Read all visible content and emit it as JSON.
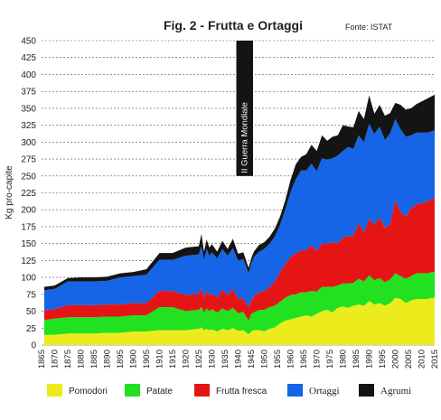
{
  "chart_data": {
    "type": "area",
    "stacked": true,
    "title": "Fig. 2 - Frutta e Ortaggi",
    "source": "Fonte: ISTAT",
    "ylabel": "Kg pro-capite",
    "xlabel": "",
    "ylim": [
      0,
      450
    ],
    "y_ticks": [
      0,
      25,
      50,
      75,
      100,
      125,
      150,
      175,
      200,
      225,
      250,
      275,
      300,
      325,
      350,
      375,
      400,
      425,
      450
    ],
    "x_ticks": [
      1865,
      1870,
      1875,
      1880,
      1885,
      1890,
      1895,
      1900,
      1905,
      1910,
      1915,
      1920,
      1925,
      1930,
      1935,
      1940,
      1945,
      1950,
      1955,
      1960,
      1965,
      1970,
      1975,
      1980,
      1985,
      1990,
      1995,
      2000,
      2005,
      2010,
      2015
    ],
    "xlim": [
      1865,
      2015
    ],
    "grid": "horizontal-dashed",
    "legend_position": "bottom",
    "annotation": {
      "label": "II Guerra Mondiale",
      "x_from": 1940,
      "x_to": 1945,
      "y_from": 250,
      "y_to": 450
    },
    "x": [
      1866,
      1870,
      1875,
      1880,
      1885,
      1890,
      1895,
      1900,
      1905,
      1910,
      1915,
      1920,
      1925,
      1926,
      1927,
      1928,
      1929,
      1930,
      1932,
      1934,
      1936,
      1938,
      1940,
      1942,
      1944,
      1945,
      1946,
      1948,
      1950,
      1952,
      1954,
      1956,
      1958,
      1960,
      1962,
      1964,
      1966,
      1968,
      1970,
      1972,
      1974,
      1976,
      1978,
      1980,
      1982,
      1984,
      1986,
      1988,
      1990,
      1992,
      1994,
      1996,
      1998,
      2000,
      2002,
      2004,
      2006,
      2008,
      2010,
      2012,
      2014,
      2015
    ],
    "series": [
      {
        "name": "Pomodori",
        "color": "#ecec1c",
        "values": [
          15,
          15,
          17,
          17,
          17,
          18,
          18,
          20,
          20,
          22,
          22,
          22,
          24,
          26,
          22,
          24,
          22,
          23,
          20,
          24,
          22,
          25,
          21,
          22,
          16,
          20,
          22,
          22,
          20,
          24,
          26,
          32,
          36,
          38,
          40,
          42,
          44,
          42,
          46,
          50,
          52,
          48,
          55,
          57,
          55,
          58,
          60,
          58,
          65,
          60,
          62,
          58,
          62,
          70,
          68,
          62,
          66,
          68,
          68,
          68,
          70,
          70
        ]
      },
      {
        "name": "Patate",
        "color": "#21e121",
        "values": [
          22,
          24,
          24,
          24,
          24,
          24,
          24,
          24,
          24,
          34,
          34,
          28,
          28,
          30,
          26,
          30,
          28,
          30,
          28,
          30,
          28,
          30,
          26,
          27,
          20,
          26,
          26,
          30,
          32,
          32,
          32,
          32,
          34,
          36,
          35,
          36,
          34,
          38,
          33,
          36,
          34,
          38,
          33,
          34,
          36,
          34,
          38,
          36,
          38,
          36,
          37,
          35,
          35,
          36,
          34,
          36,
          36,
          38,
          38,
          38,
          38,
          38
        ]
      },
      {
        "name": "Frutta fresca",
        "color": "#e61515",
        "values": [
          14,
          14,
          18,
          18,
          18,
          18,
          18,
          18,
          18,
          24,
          24,
          24,
          24,
          28,
          22,
          26,
          24,
          24,
          22,
          28,
          24,
          28,
          22,
          20,
          20,
          20,
          24,
          26,
          28,
          30,
          36,
          44,
          50,
          56,
          60,
          62,
          62,
          68,
          60,
          64,
          64,
          66,
          62,
          68,
          70,
          70,
          82,
          72,
          84,
          82,
          90,
          80,
          82,
          108,
          95,
          92,
          100,
          102,
          104,
          106,
          108,
          110
        ]
      },
      {
        "name": "Ortaggi",
        "color": "#1565e6",
        "values": [
          30,
          30,
          35,
          35,
          35,
          35,
          40,
          40,
          42,
          46,
          46,
          58,
          58,
          62,
          56,
          62,
          58,
          60,
          58,
          60,
          58,
          60,
          56,
          58,
          50,
          54,
          58,
          60,
          62,
          64,
          66,
          70,
          80,
          96,
          110,
          118,
          118,
          120,
          118,
          126,
          124,
          124,
          130,
          128,
          132,
          128,
          130,
          134,
          140,
          134,
          134,
          130,
          134,
          120,
          122,
          118,
          108,
          106,
          104,
          102,
          100,
          100
        ]
      },
      {
        "name": "Agrumi",
        "color": "#141414",
        "values": [
          5,
          5,
          5,
          6,
          6,
          6,
          6,
          6,
          8,
          10,
          10,
          12,
          12,
          18,
          12,
          14,
          12,
          12,
          10,
          12,
          10,
          14,
          10,
          10,
          8,
          8,
          8,
          10,
          10,
          10,
          12,
          12,
          14,
          18,
          22,
          20,
          24,
          28,
          30,
          34,
          28,
          32,
          30,
          38,
          30,
          32,
          36,
          34,
          42,
          30,
          32,
          36,
          30,
          24,
          36,
          40,
          40,
          42,
          46,
          50,
          52,
          52
        ]
      }
    ]
  }
}
